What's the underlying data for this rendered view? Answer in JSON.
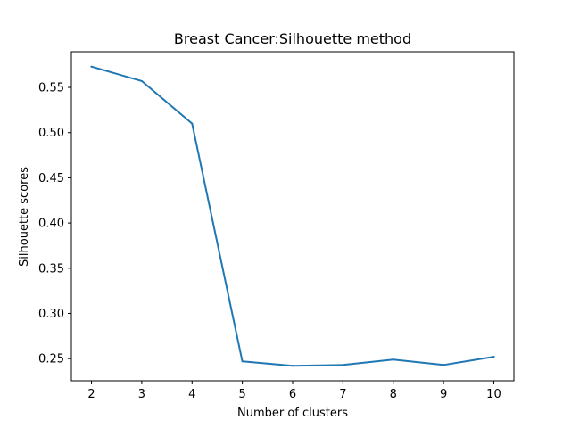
{
  "chart_data": {
    "type": "line",
    "title": "Breast Cancer:Silhouette method",
    "xlabel": "Number of clusters",
    "ylabel": "Silhouette scores",
    "x": [
      2,
      3,
      4,
      5,
      6,
      7,
      8,
      9,
      10
    ],
    "series": [
      {
        "values": [
          0.573,
          0.557,
          0.51,
          0.247,
          0.242,
          0.243,
          0.249,
          0.243,
          0.252
        ],
        "color": "#1f77b4"
      }
    ],
    "xticks": [
      2,
      3,
      4,
      5,
      6,
      7,
      8,
      9,
      10
    ],
    "yticks": [
      "0.25",
      "0.30",
      "0.35",
      "0.40",
      "0.45",
      "0.50",
      "0.55"
    ],
    "xlim": [
      1.6,
      10.4
    ],
    "ylim": [
      0.2255,
      0.5895
    ],
    "grid": false,
    "legend": "none"
  }
}
